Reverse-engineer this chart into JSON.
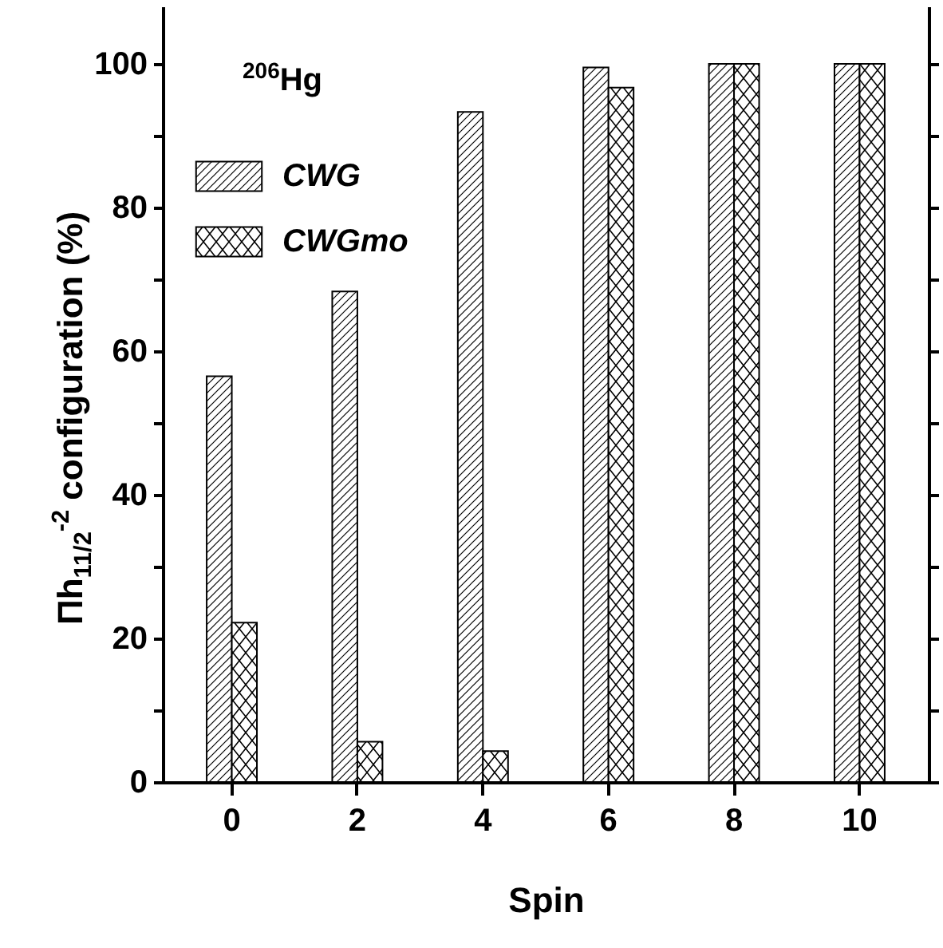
{
  "chart_data": {
    "type": "bar",
    "xlabel": "Spin",
    "ylabel": "Πh$_{11/2}$$^{-2}$ configuration (%)",
    "annotations": [
      "$^{206}$Hg"
    ],
    "categories": [
      "0",
      "2",
      "4",
      "6",
      "8",
      "10"
    ],
    "series": [
      {
        "name": "CWG",
        "color": "#000000",
        "values": [
          56.5,
          68.3,
          93.3,
          99.5,
          100,
          100
        ]
      },
      {
        "name": "CWGmo",
        "color": "#000000",
        "values": [
          22.2,
          5.6,
          4.3,
          96.7,
          100,
          100
        ]
      }
    ],
    "ylim": [
      0,
      108
    ],
    "yticks": [
      0,
      {
        "value": 10,
        "label": null
      },
      20,
      {
        "value": 30,
        "label": null
      },
      40,
      {
        "value": 50,
        "label": null
      },
      60,
      {
        "value": 70,
        "label": null
      },
      80,
      {
        "value": 90,
        "label": null
      },
      100
    ],
    "grid": false,
    "legend": "top left"
  }
}
